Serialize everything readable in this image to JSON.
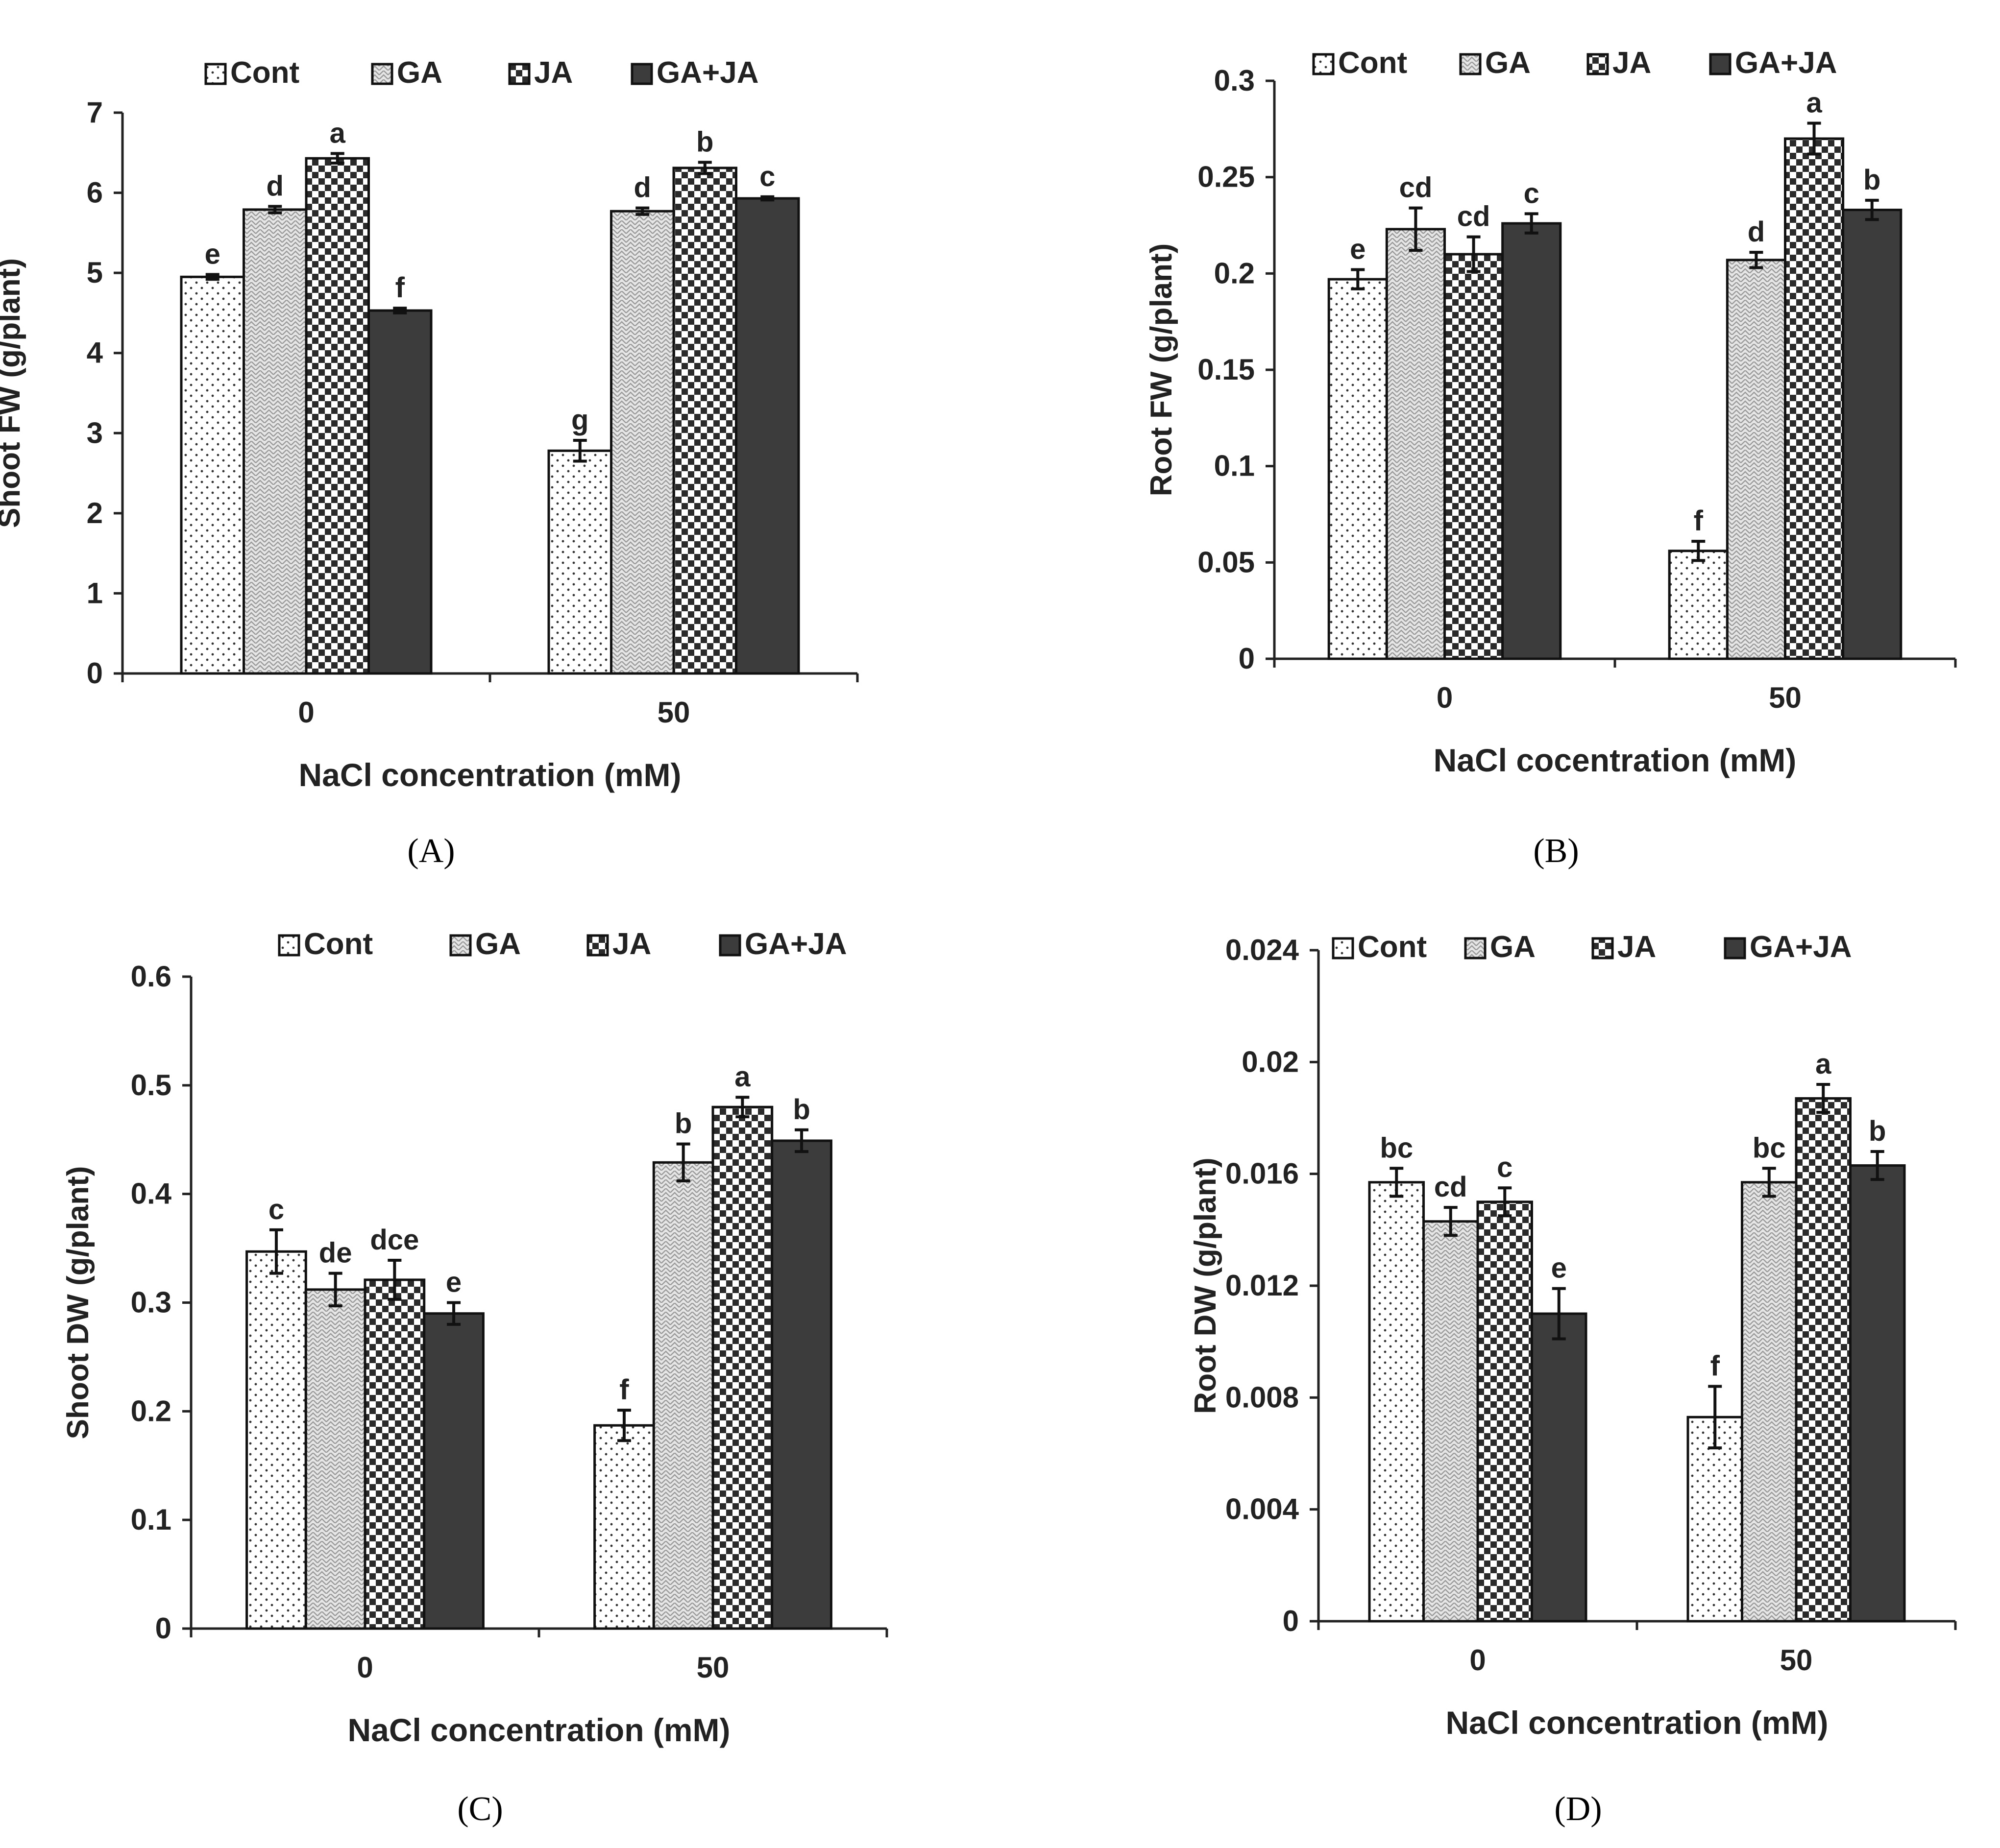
{
  "figure": {
    "legend_series": [
      "Cont",
      "GA",
      "JA",
      "GA+JA"
    ],
    "series_colors": {
      "Cont": "#ffffff",
      "GA": "#dcdcdc",
      "JA": "#333333",
      "GA+JA": "#3a3a3a"
    }
  },
  "chart_data": [
    {
      "type": "bar",
      "panel_label": "(A)",
      "categories": [
        "0",
        "50"
      ],
      "xlabel": "NaCl concentration (mM)",
      "ylabel": "Shoot FW (g/plant)",
      "ylim": [
        0,
        7
      ],
      "yticks": [
        "0",
        "1",
        "2",
        "3",
        "4",
        "5",
        "6",
        "7"
      ],
      "ytick_values": [
        0,
        1,
        2,
        3,
        4,
        5,
        6,
        7
      ],
      "legend_position": "top",
      "grid": false,
      "series": [
        {
          "name": "Cont",
          "values": [
            4.95,
            2.78
          ],
          "errors": [
            0.03,
            0.13
          ],
          "letters": [
            "e",
            "g"
          ]
        },
        {
          "name": "GA",
          "values": [
            5.79,
            5.77
          ],
          "errors": [
            0.04,
            0.04
          ],
          "letters": [
            "d",
            "d"
          ]
        },
        {
          "name": "JA",
          "values": [
            6.43,
            6.31
          ],
          "errors": [
            0.06,
            0.07
          ],
          "letters": [
            "a",
            "b"
          ]
        },
        {
          "name": "GA+JA",
          "values": [
            4.53,
            5.93
          ],
          "errors": [
            0.03,
            0.02
          ],
          "letters": [
            "f",
            "c"
          ]
        }
      ]
    },
    {
      "type": "bar",
      "panel_label": "(B)",
      "categories": [
        "0",
        "50"
      ],
      "xlabel": "NaCl cocentration (mM)",
      "ylabel": "Root FW  (g/plant)",
      "ylim": [
        0,
        0.3
      ],
      "yticks": [
        "0",
        "0.05",
        "0.1",
        "0.15",
        "0.2",
        "0.25",
        "0.3"
      ],
      "ytick_values": [
        0,
        0.05,
        0.1,
        0.15,
        0.2,
        0.25,
        0.3
      ],
      "legend_position": "top",
      "grid": false,
      "series": [
        {
          "name": "Cont",
          "values": [
            0.197,
            0.056
          ],
          "errors": [
            0.005,
            0.005
          ],
          "letters": [
            "e",
            "f"
          ]
        },
        {
          "name": "GA",
          "values": [
            0.223,
            0.207
          ],
          "errors": [
            0.011,
            0.004
          ],
          "letters": [
            "cd",
            "d"
          ]
        },
        {
          "name": "JA",
          "values": [
            0.21,
            0.27
          ],
          "errors": [
            0.009,
            0.008
          ],
          "letters": [
            "cd",
            "a"
          ]
        },
        {
          "name": "GA+JA",
          "values": [
            0.226,
            0.233
          ],
          "errors": [
            0.005,
            0.005
          ],
          "letters": [
            "c",
            "b"
          ]
        }
      ]
    },
    {
      "type": "bar",
      "panel_label": "(C)",
      "categories": [
        "0",
        "50"
      ],
      "xlabel": "NaCl concentration (mM)",
      "ylabel": "Shoot DW (g/plant)",
      "ylim": [
        0,
        0.6
      ],
      "yticks": [
        "0",
        "0.1",
        "0.2",
        "0.3",
        "0.4",
        "0.5",
        "0.6"
      ],
      "ytick_values": [
        0,
        0.1,
        0.2,
        0.3,
        0.4,
        0.5,
        0.6
      ],
      "legend_position": "top",
      "grid": false,
      "series": [
        {
          "name": "Cont",
          "values": [
            0.347,
            0.187
          ],
          "errors": [
            0.02,
            0.014
          ],
          "letters": [
            "c",
            "f"
          ]
        },
        {
          "name": "GA",
          "values": [
            0.312,
            0.429
          ],
          "errors": [
            0.015,
            0.017
          ],
          "letters": [
            "de",
            "b"
          ]
        },
        {
          "name": "JA",
          "values": [
            0.321,
            0.48
          ],
          "errors": [
            0.018,
            0.009
          ],
          "letters": [
            "dce",
            "a"
          ]
        },
        {
          "name": "GA+JA",
          "values": [
            0.29,
            0.449
          ],
          "errors": [
            0.01,
            0.01
          ],
          "letters": [
            "e",
            "b"
          ]
        }
      ]
    },
    {
      "type": "bar",
      "panel_label": "(D)",
      "categories": [
        "0",
        "50"
      ],
      "xlabel": "NaCl concentration (mM)",
      "ylabel": "Root DW (g/plant)",
      "ylim": [
        0,
        0.024
      ],
      "yticks": [
        "0",
        "0.004",
        "0.008",
        "0.012",
        "0.016",
        "0.02",
        "0.024"
      ],
      "ytick_values": [
        0,
        0.004,
        0.008,
        0.012,
        0.016,
        0.02,
        0.024
      ],
      "legend_position": "top",
      "grid": false,
      "series": [
        {
          "name": "Cont",
          "values": [
            0.0157,
            0.0073
          ],
          "errors": [
            0.0005,
            0.0011
          ],
          "letters": [
            "bc",
            "f"
          ]
        },
        {
          "name": "GA",
          "values": [
            0.0143,
            0.0157
          ],
          "errors": [
            0.0005,
            0.0005
          ],
          "letters": [
            "cd",
            "bc"
          ]
        },
        {
          "name": "JA",
          "values": [
            0.015,
            0.0187
          ],
          "errors": [
            0.0005,
            0.0005
          ],
          "letters": [
            "c",
            "a"
          ]
        },
        {
          "name": "GA+JA",
          "values": [
            0.011,
            0.0163
          ],
          "errors": [
            0.0009,
            0.0005
          ],
          "letters": [
            "e",
            "b"
          ]
        }
      ]
    }
  ]
}
